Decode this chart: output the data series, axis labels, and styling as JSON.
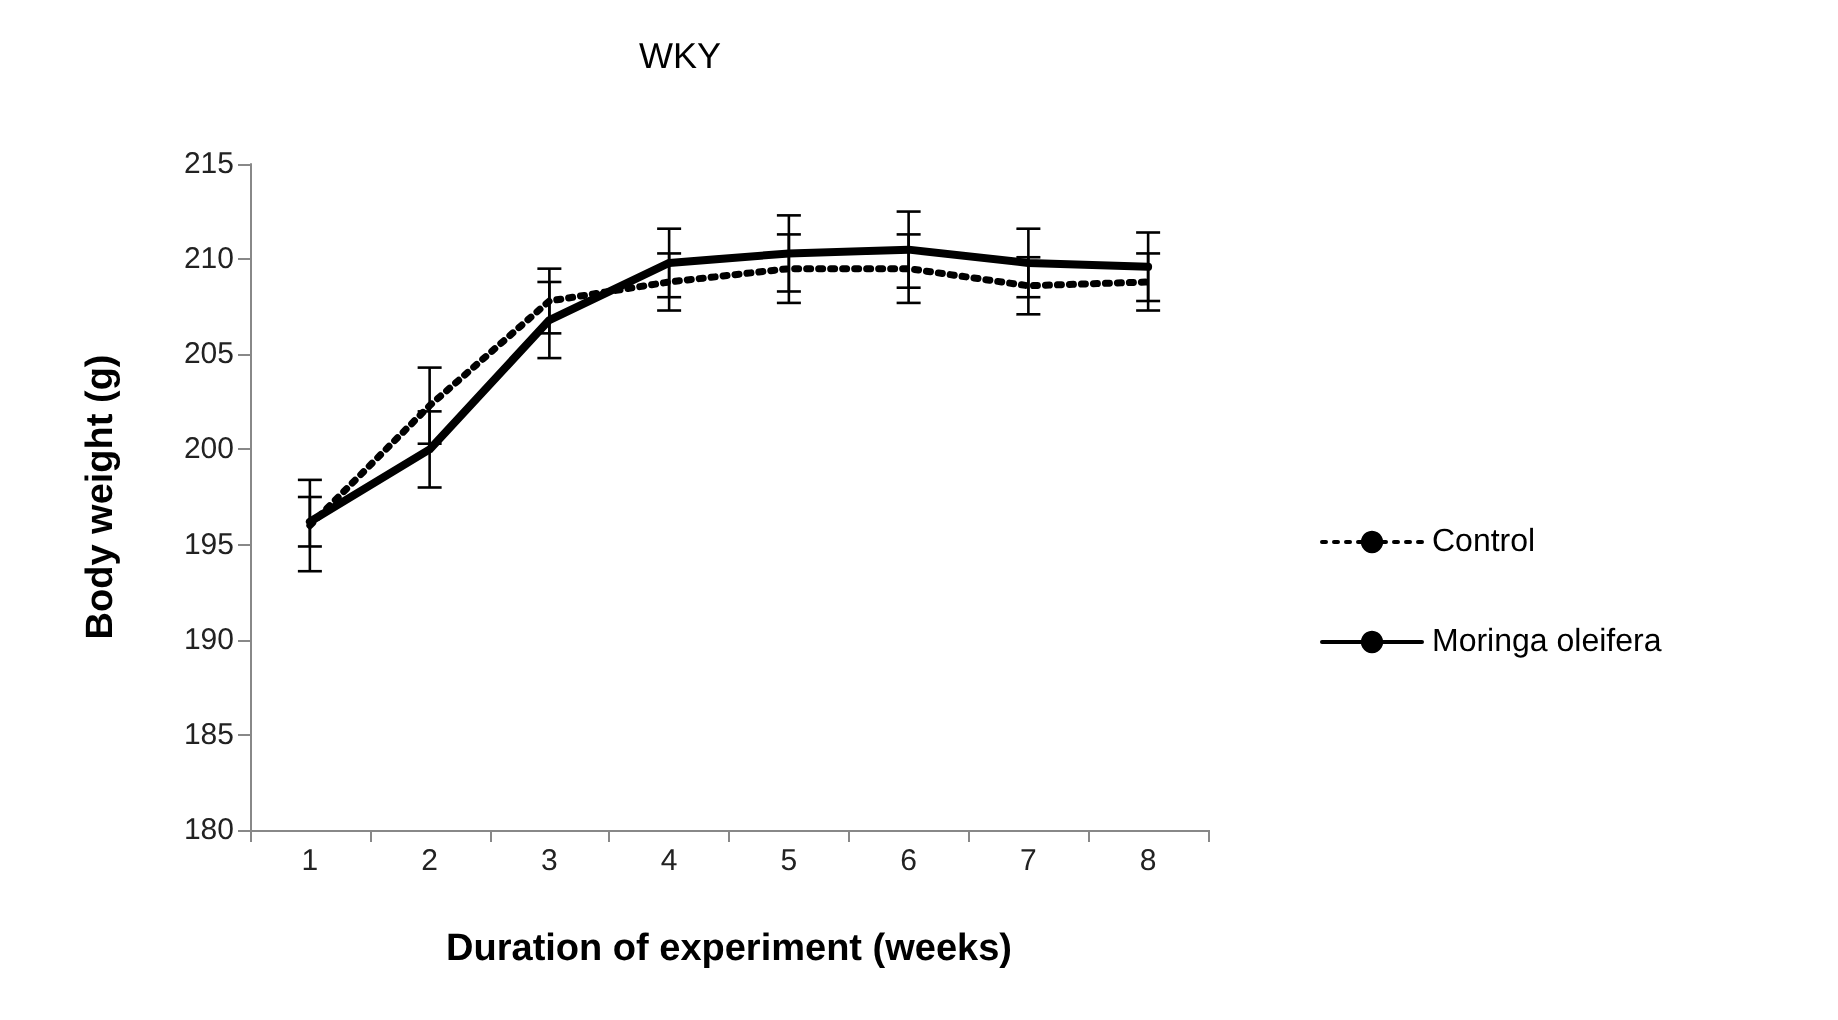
{
  "chart_data": {
    "type": "line",
    "title": "WKY",
    "xlabel": "Duration of experiment (weeks)",
    "ylabel": "Body weight (g)",
    "categories": [
      "1",
      "2",
      "3",
      "4",
      "5",
      "6",
      "7",
      "8"
    ],
    "series": [
      {
        "name": "Control",
        "color": "#000000",
        "line_style": "dotted",
        "values": [
          196,
          202.3,
          207.8,
          208.8,
          209.5,
          209.5,
          208.6,
          208.8
        ],
        "errors": [
          2.4,
          2,
          1.7,
          1.5,
          1.8,
          1.8,
          1.5,
          1.5
        ]
      },
      {
        "name": "Moringa oleifera",
        "color": "#000000",
        "line_style": "solid",
        "values": [
          196.2,
          200,
          206.8,
          209.8,
          210.3,
          210.5,
          209.8,
          209.6
        ],
        "errors": [
          1.3,
          2,
          2,
          1.8,
          2,
          2,
          1.8,
          1.8
        ]
      }
    ],
    "ylim": [
      180,
      215
    ],
    "yticks": [
      180,
      185,
      190,
      195,
      200,
      205,
      210,
      215
    ],
    "grid": false,
    "legend": "right",
    "marker": "none"
  }
}
